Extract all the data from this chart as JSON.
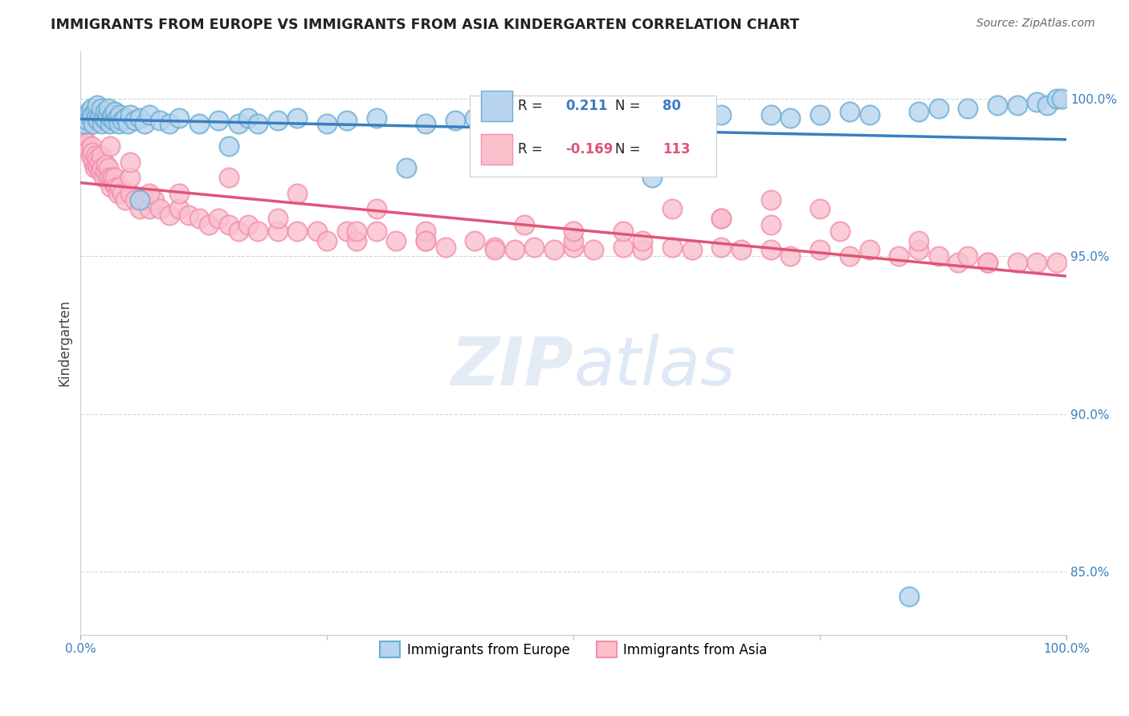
{
  "title": "IMMIGRANTS FROM EUROPE VS IMMIGRANTS FROM ASIA KINDERGARTEN CORRELATION CHART",
  "source": "Source: ZipAtlas.com",
  "ylabel": "Kindergarten",
  "xmin": 0.0,
  "xmax": 100.0,
  "ymin": 83.0,
  "ymax": 101.5,
  "yticks": [
    85.0,
    90.0,
    95.0,
    100.0
  ],
  "ytick_labels": [
    "85.0%",
    "90.0%",
    "95.0%",
    "100.0%"
  ],
  "legend_r_europe": "0.211",
  "legend_n_europe": "80",
  "legend_r_asia": "-0.169",
  "legend_n_asia": "113",
  "color_europe_face": "#b8d4ee",
  "color_europe_edge": "#6baed6",
  "color_asia_face": "#f9c0cc",
  "color_asia_edge": "#f48fb1",
  "trendline_color_europe": "#3a7fc1",
  "trendline_color_asia": "#e05578",
  "watermark_color": "#d8e4f0",
  "europe_x": [
    0.4,
    0.6,
    0.7,
    0.9,
    1.0,
    1.1,
    1.2,
    1.3,
    1.5,
    1.6,
    1.7,
    1.8,
    2.0,
    2.1,
    2.2,
    2.3,
    2.5,
    2.6,
    2.7,
    2.8,
    3.0,
    3.1,
    3.2,
    3.4,
    3.5,
    3.7,
    3.9,
    4.0,
    4.2,
    4.5,
    4.8,
    5.0,
    5.5,
    6.0,
    6.5,
    7.0,
    8.0,
    9.0,
    10.0,
    12.0,
    14.0,
    16.0,
    17.0,
    18.0,
    20.0,
    22.0,
    25.0,
    27.0,
    30.0,
    35.0,
    38.0,
    40.0,
    42.0,
    45.0,
    47.0,
    50.0,
    55.0,
    58.0,
    60.0,
    62.0,
    65.0,
    70.0,
    72.0,
    75.0,
    78.0,
    80.0,
    85.0,
    87.0,
    90.0,
    93.0,
    95.0,
    97.0,
    98.0,
    99.0,
    99.5,
    6.0,
    15.0,
    33.0,
    58.0,
    84.0
  ],
  "europe_y": [
    99.2,
    99.5,
    99.3,
    99.6,
    99.4,
    99.7,
    99.5,
    99.2,
    99.6,
    99.4,
    99.8,
    99.3,
    99.5,
    99.7,
    99.2,
    99.4,
    99.6,
    99.3,
    99.5,
    99.7,
    99.2,
    99.4,
    99.5,
    99.3,
    99.6,
    99.4,
    99.2,
    99.5,
    99.3,
    99.4,
    99.2,
    99.5,
    99.3,
    99.4,
    99.2,
    99.5,
    99.3,
    99.2,
    99.4,
    99.2,
    99.3,
    99.2,
    99.4,
    99.2,
    99.3,
    99.4,
    99.2,
    99.3,
    99.4,
    99.2,
    99.3,
    99.4,
    99.3,
    99.4,
    99.3,
    99.4,
    99.3,
    99.4,
    99.5,
    99.4,
    99.5,
    99.5,
    99.4,
    99.5,
    99.6,
    99.5,
    99.6,
    99.7,
    99.7,
    99.8,
    99.8,
    99.9,
    99.8,
    100.0,
    100.0,
    96.8,
    98.5,
    97.8,
    97.5,
    84.2
  ],
  "asia_x": [
    0.3,
    0.5,
    0.6,
    0.8,
    1.0,
    1.1,
    1.2,
    1.3,
    1.4,
    1.5,
    1.6,
    1.7,
    1.8,
    1.9,
    2.0,
    2.1,
    2.2,
    2.3,
    2.5,
    2.6,
    2.7,
    2.8,
    3.0,
    3.1,
    3.2,
    3.4,
    3.5,
    3.6,
    3.8,
    4.0,
    4.2,
    4.5,
    5.0,
    5.5,
    6.0,
    6.5,
    7.0,
    7.5,
    8.0,
    9.0,
    10.0,
    11.0,
    12.0,
    13.0,
    14.0,
    15.0,
    16.0,
    17.0,
    18.0,
    20.0,
    22.0,
    24.0,
    25.0,
    27.0,
    28.0,
    30.0,
    32.0,
    35.0,
    37.0,
    40.0,
    42.0,
    44.0,
    46.0,
    48.0,
    50.0,
    52.0,
    55.0,
    57.0,
    60.0,
    62.0,
    65.0,
    67.0,
    70.0,
    72.0,
    75.0,
    78.0,
    80.0,
    83.0,
    85.0,
    87.0,
    89.0,
    90.0,
    92.0,
    95.0,
    97.0,
    99.0,
    3.0,
    5.0,
    7.0,
    15.0,
    22.0,
    30.0,
    35.0,
    45.0,
    50.0,
    55.0,
    60.0,
    65.0,
    70.0,
    75.0,
    5.0,
    10.0,
    20.0,
    28.0,
    35.0,
    42.0,
    50.0,
    57.0,
    65.0,
    70.0,
    77.0,
    85.0,
    92.0
  ],
  "asia_y": [
    98.8,
    98.5,
    98.6,
    98.4,
    98.2,
    98.5,
    98.3,
    98.0,
    97.8,
    98.2,
    97.9,
    98.1,
    97.8,
    98.0,
    97.7,
    98.2,
    97.8,
    97.5,
    97.7,
    97.9,
    97.5,
    97.8,
    97.5,
    97.2,
    97.5,
    97.3,
    97.5,
    97.2,
    97.0,
    97.2,
    97.0,
    96.8,
    97.0,
    96.8,
    96.5,
    96.8,
    96.5,
    96.8,
    96.5,
    96.3,
    96.5,
    96.3,
    96.2,
    96.0,
    96.2,
    96.0,
    95.8,
    96.0,
    95.8,
    95.8,
    95.8,
    95.8,
    95.5,
    95.8,
    95.5,
    95.8,
    95.5,
    95.5,
    95.3,
    95.5,
    95.3,
    95.2,
    95.3,
    95.2,
    95.3,
    95.2,
    95.3,
    95.2,
    95.3,
    95.2,
    95.3,
    95.2,
    95.2,
    95.0,
    95.2,
    95.0,
    95.2,
    95.0,
    95.2,
    95.0,
    94.8,
    95.0,
    94.8,
    94.8,
    94.8,
    94.8,
    98.5,
    97.5,
    97.0,
    97.5,
    97.0,
    96.5,
    95.8,
    96.0,
    95.5,
    95.8,
    96.5,
    96.2,
    96.8,
    96.5,
    98.0,
    97.0,
    96.2,
    95.8,
    95.5,
    95.2,
    95.8,
    95.5,
    96.2,
    96.0,
    95.8,
    95.5,
    94.8
  ]
}
